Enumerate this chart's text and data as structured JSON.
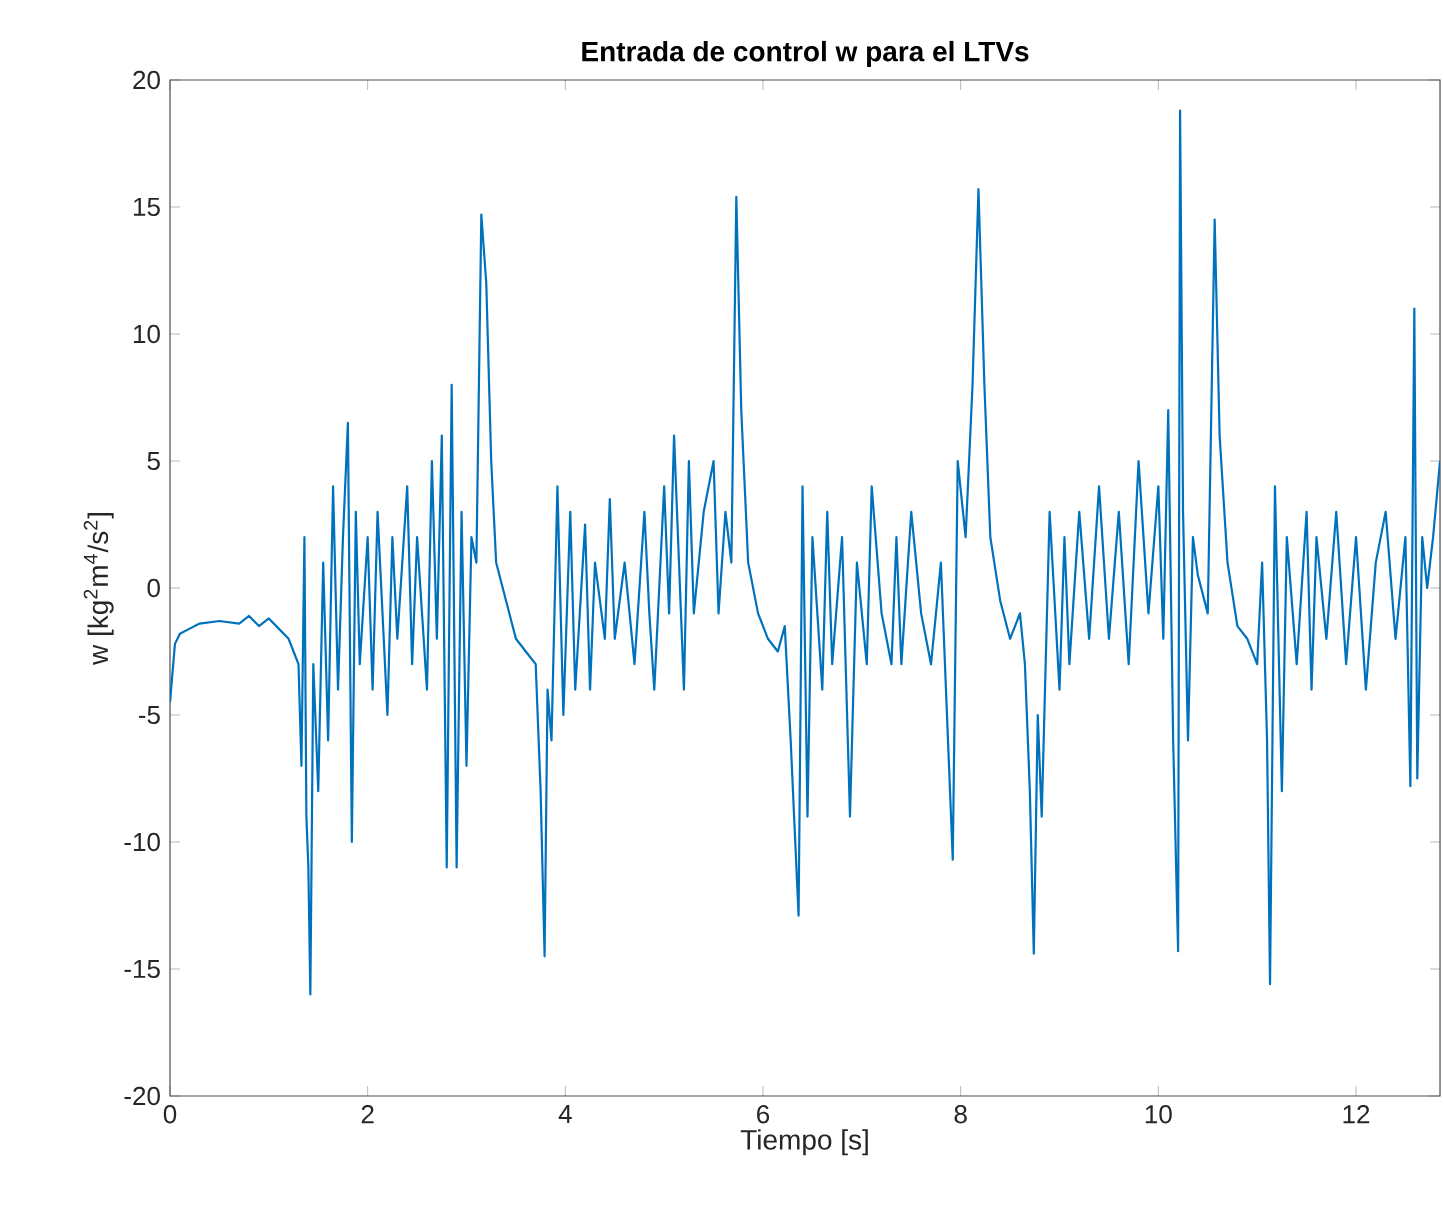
{
  "chart_data": {
    "type": "line",
    "title": "**Entrada de control w para el LTVs**",
    "xlabel": "Tiempo [s]",
    "ylabel": "w [kg$^{2}$m$^{4}$/s$^{2}$]",
    "xlim": [
      0,
      12.85
    ],
    "ylim": [
      -20,
      20
    ],
    "xticks": [
      0,
      2,
      4,
      6,
      8,
      10,
      12
    ],
    "yticks": [
      -20,
      -15,
      -10,
      -5,
      0,
      5,
      10,
      15,
      20
    ],
    "grid": false,
    "marker": "none",
    "line_style": "solid",
    "x": [
      0,
      0.05,
      0.1,
      0.2,
      0.3,
      0.5,
      0.7,
      0.8,
      0.9,
      1.0,
      1.1,
      1.2,
      1.25,
      1.3,
      1.33,
      1.36,
      1.38,
      1.4,
      1.42,
      1.45,
      1.5,
      1.55,
      1.6,
      1.65,
      1.7,
      1.75,
      1.8,
      1.84,
      1.88,
      1.92,
      2.0,
      2.05,
      2.1,
      2.2,
      2.25,
      2.3,
      2.4,
      2.45,
      2.5,
      2.6,
      2.65,
      2.7,
      2.75,
      2.8,
      2.85,
      2.9,
      2.95,
      3.0,
      3.05,
      3.1,
      3.15,
      3.2,
      3.25,
      3.3,
      3.4,
      3.5,
      3.6,
      3.7,
      3.75,
      3.79,
      3.82,
      3.86,
      3.92,
      3.98,
      4.05,
      4.1,
      4.2,
      4.25,
      4.3,
      4.4,
      4.45,
      4.5,
      4.6,
      4.7,
      4.8,
      4.85,
      4.9,
      5.0,
      5.05,
      5.1,
      5.2,
      5.25,
      5.3,
      5.4,
      5.5,
      5.55,
      5.62,
      5.68,
      5.73,
      5.78,
      5.85,
      5.95,
      6.05,
      6.15,
      6.22,
      6.28,
      6.36,
      6.4,
      6.45,
      6.5,
      6.6,
      6.65,
      6.7,
      6.8,
      6.88,
      6.95,
      7.05,
      7.1,
      7.2,
      7.3,
      7.35,
      7.4,
      7.5,
      7.6,
      7.7,
      7.8,
      7.92,
      7.97,
      8.05,
      8.12,
      8.18,
      8.24,
      8.3,
      8.4,
      8.5,
      8.6,
      8.65,
      8.7,
      8.74,
      8.78,
      8.82,
      8.9,
      9.0,
      9.05,
      9.1,
      9.2,
      9.3,
      9.4,
      9.5,
      9.6,
      9.7,
      9.8,
      9.9,
      10.0,
      10.05,
      10.1,
      10.15,
      10.2,
      10.22,
      10.25,
      10.3,
      10.35,
      10.4,
      10.5,
      10.57,
      10.62,
      10.7,
      10.8,
      10.9,
      11.0,
      11.05,
      11.1,
      11.13,
      11.18,
      11.25,
      11.3,
      11.4,
      11.5,
      11.55,
      11.6,
      11.7,
      11.8,
      11.9,
      12.0,
      12.1,
      12.2,
      12.3,
      12.4,
      12.5,
      12.55,
      12.59,
      12.62,
      12.67,
      12.72,
      12.78,
      12.85
    ],
    "series": [
      {
        "color": "#0072bd",
        "values": [
          -4.5,
          -2.2,
          -1.8,
          -1.6,
          -1.4,
          -1.3,
          -1.4,
          -1.1,
          -1.5,
          -1.2,
          -1.6,
          -2,
          -2.5,
          -3,
          -7,
          2,
          -9,
          -11,
          -16,
          -3,
          -8,
          1,
          -6,
          4,
          -4,
          2,
          6.5,
          -10,
          3,
          -3,
          2,
          -4,
          3,
          -5,
          2,
          -2,
          4,
          -3,
          2,
          -4,
          5,
          -2,
          6,
          -11,
          8,
          -11,
          3,
          -7,
          2,
          1,
          14.7,
          12,
          5,
          1,
          -0.5,
          -2,
          -2.5,
          -3,
          -8,
          -14.5,
          -4,
          -6,
          4,
          -5,
          3,
          -4,
          2.5,
          -4,
          1,
          -2,
          3.5,
          -2,
          1,
          -3,
          3,
          -1,
          -4,
          4,
          -1,
          6,
          -4,
          5,
          -1,
          3,
          5,
          -1,
          3,
          1,
          15.4,
          7,
          1,
          -1,
          -2,
          -2.5,
          -1.5,
          -6,
          -12.9,
          4,
          -9,
          2,
          -4,
          3,
          -3,
          2,
          -9,
          1,
          -3,
          4,
          -1,
          -3,
          2,
          -3,
          3,
          -1,
          -3,
          1,
          -10.7,
          5,
          2,
          8,
          15.7,
          8,
          2,
          -0.5,
          -2,
          -1,
          -3,
          -8,
          -14.4,
          -5,
          -9,
          3,
          -4,
          2,
          -3,
          3,
          -2,
          4,
          -2,
          3,
          -3,
          5,
          -1,
          4,
          -2,
          7,
          -6,
          -14.3,
          18.8,
          3,
          -6,
          2,
          0.5,
          -1,
          14.5,
          6,
          1,
          -1.5,
          -2,
          -3,
          1,
          -6,
          -15.6,
          4,
          -8,
          2,
          -3,
          3,
          -4,
          2,
          -2,
          3,
          -3,
          2,
          -4,
          1,
          3,
          -2,
          2,
          -7.8,
          11,
          -7.5,
          2,
          0,
          2,
          5
        ]
      }
    ]
  }
}
